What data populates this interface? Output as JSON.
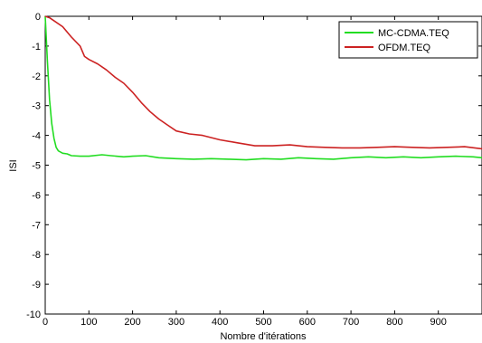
{
  "chart_data": {
    "type": "line",
    "title": "",
    "xlabel": "Nombre d'itérations",
    "ylabel": "ISI",
    "xlim": [
      0,
      1000
    ],
    "ylim": [
      -10,
      0
    ],
    "xticks": [
      0,
      100,
      200,
      300,
      400,
      500,
      600,
      700,
      800,
      900
    ],
    "yticks": [
      0,
      -1,
      -2,
      -3,
      -4,
      -5,
      -6,
      -7,
      -8,
      -9,
      -10
    ],
    "grid": false,
    "legend_position": "top-right",
    "series": [
      {
        "name": "MC-CDMA.TEQ",
        "color": "#22dd22",
        "x": [
          0,
          5,
          10,
          15,
          20,
          25,
          30,
          40,
          50,
          60,
          80,
          100,
          130,
          150,
          180,
          200,
          230,
          260,
          300,
          340,
          380,
          420,
          460,
          500,
          540,
          580,
          620,
          660,
          700,
          740,
          780,
          820,
          860,
          900,
          940,
          980,
          1000
        ],
        "y": [
          0,
          -1.5,
          -2.8,
          -3.6,
          -4.1,
          -4.4,
          -4.52,
          -4.6,
          -4.62,
          -4.68,
          -4.7,
          -4.7,
          -4.65,
          -4.68,
          -4.72,
          -4.7,
          -4.68,
          -4.75,
          -4.78,
          -4.8,
          -4.78,
          -4.8,
          -4.82,
          -4.78,
          -4.8,
          -4.75,
          -4.78,
          -4.8,
          -4.75,
          -4.72,
          -4.75,
          -4.72,
          -4.75,
          -4.72,
          -4.7,
          -4.72,
          -4.75
        ]
      },
      {
        "name": "OFDM.TEQ",
        "color": "#cc2222",
        "x": [
          0,
          10,
          20,
          40,
          60,
          80,
          90,
          100,
          120,
          140,
          160,
          180,
          200,
          220,
          240,
          260,
          280,
          300,
          330,
          360,
          400,
          440,
          480,
          520,
          560,
          600,
          640,
          680,
          720,
          760,
          800,
          840,
          880,
          920,
          960,
          1000
        ],
        "y": [
          0,
          -0.05,
          -0.15,
          -0.35,
          -0.7,
          -1.0,
          -1.35,
          -1.45,
          -1.6,
          -1.8,
          -2.05,
          -2.25,
          -2.55,
          -2.9,
          -3.2,
          -3.45,
          -3.65,
          -3.85,
          -3.95,
          -4.0,
          -4.15,
          -4.25,
          -4.35,
          -4.35,
          -4.32,
          -4.38,
          -4.4,
          -4.42,
          -4.42,
          -4.4,
          -4.38,
          -4.4,
          -4.42,
          -4.4,
          -4.38,
          -4.45
        ]
      }
    ]
  }
}
